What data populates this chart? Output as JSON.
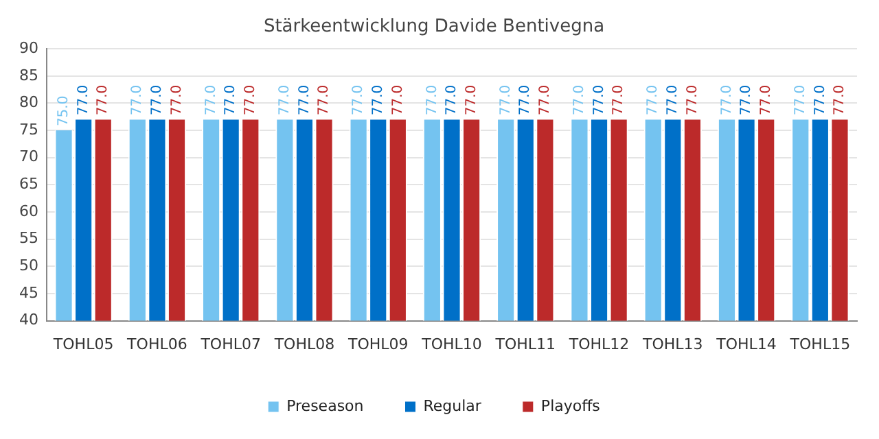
{
  "chart_data": {
    "type": "bar",
    "title": "Stärkeentwicklung Davide Bentivegna",
    "categories": [
      "TOHL05",
      "TOHL06",
      "TOHL07",
      "TOHL08",
      "TOHL09",
      "TOHL10",
      "TOHL11",
      "TOHL12",
      "TOHL13",
      "TOHL14",
      "TOHL15"
    ],
    "series": [
      {
        "name": "Preseason",
        "color": "#74c3f0",
        "values": [
          75,
          77,
          77,
          77,
          77,
          77,
          77,
          77,
          77,
          77,
          77
        ],
        "value_labels": [
          "75.0",
          "77.0",
          "77.0",
          "77.0",
          "77.0",
          "77.0",
          "77.0",
          "77.0",
          "77.0",
          "77.0",
          "77.0"
        ]
      },
      {
        "name": "Regular",
        "color": "#0070c8",
        "values": [
          77,
          77,
          77,
          77,
          77,
          77,
          77,
          77,
          77,
          77,
          77
        ],
        "value_labels": [
          "77.0",
          "77.0",
          "77.0",
          "77.0",
          "77.0",
          "77.0",
          "77.0",
          "77.0",
          "77.0",
          "77.0",
          "77.0"
        ]
      },
      {
        "name": "Playoffs",
        "color": "#bc2a2a",
        "values": [
          77,
          77,
          77,
          77,
          77,
          77,
          77,
          77,
          77,
          77,
          77
        ],
        "value_labels": [
          "77.0",
          "77.0",
          "77.0",
          "77.0",
          "77.0",
          "77.0",
          "77.0",
          "77.0",
          "77.0",
          "77.0",
          "77.0"
        ]
      }
    ],
    "ylim": [
      40,
      90
    ],
    "yticks": [
      40,
      45,
      50,
      55,
      60,
      65,
      70,
      75,
      80,
      85,
      90
    ],
    "grid": "y",
    "legend": "bottom"
  }
}
